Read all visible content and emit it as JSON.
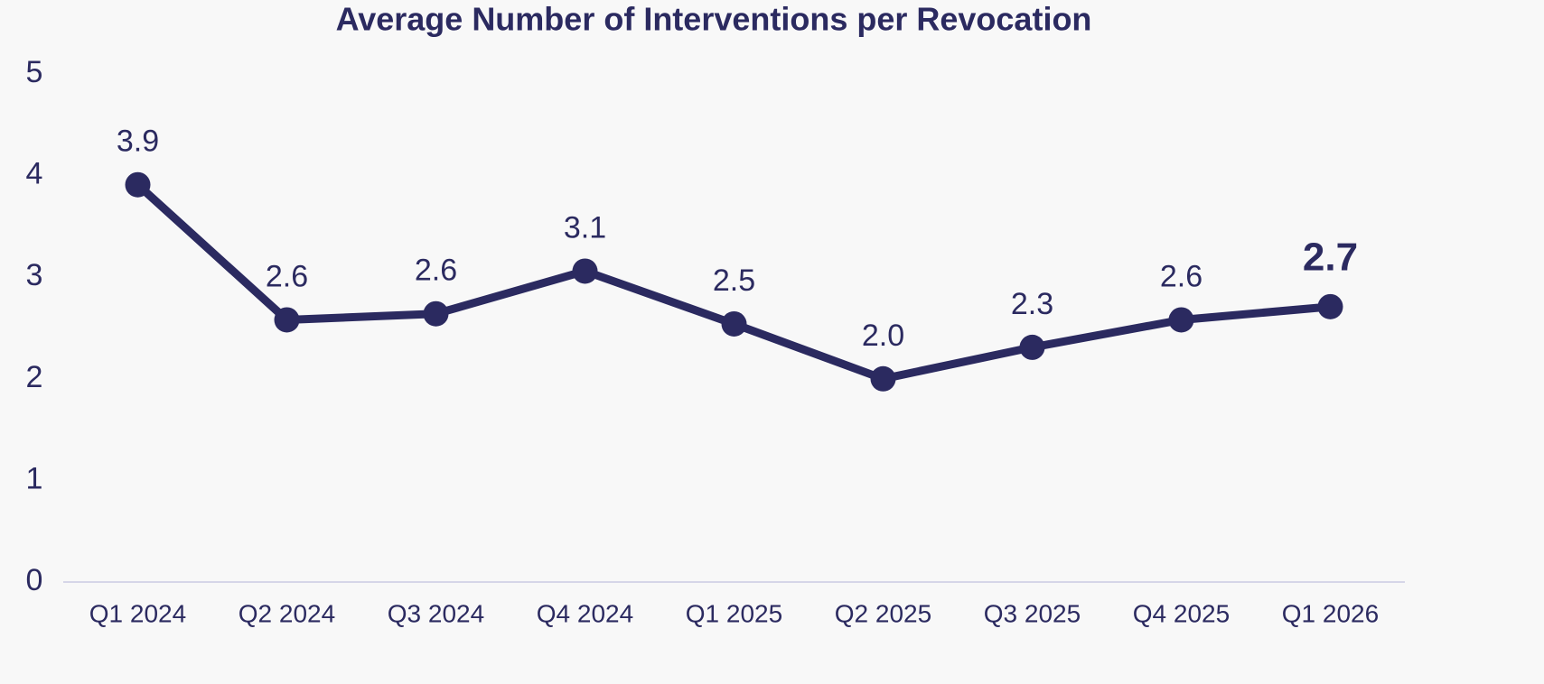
{
  "chart_data": {
    "type": "line",
    "title": "Average Number of Interventions per Revocation",
    "categories": [
      "Q1 2024",
      "Q2 2024",
      "Q3 2024",
      "Q4 2024",
      "Q1 2025",
      "Q2 2025",
      "Q3 2025",
      "Q4 2025",
      "Q1 2026"
    ],
    "series": [
      {
        "name": "Average Number of Interventions per Revocation",
        "color": "#2b2a60",
        "values": [
          3.91,
          2.58,
          2.64,
          3.06,
          2.54,
          2.0,
          2.31,
          2.58,
          2.71
        ],
        "value_labels": [
          "3.9",
          "2.6",
          "2.6",
          "3.1",
          "2.5",
          "2.0",
          "2.3",
          "2.6",
          "2.7"
        ]
      }
    ],
    "ylim": [
      0,
      5
    ],
    "yticks": [
      0,
      1,
      2,
      3,
      4,
      5
    ],
    "grid": false
  }
}
